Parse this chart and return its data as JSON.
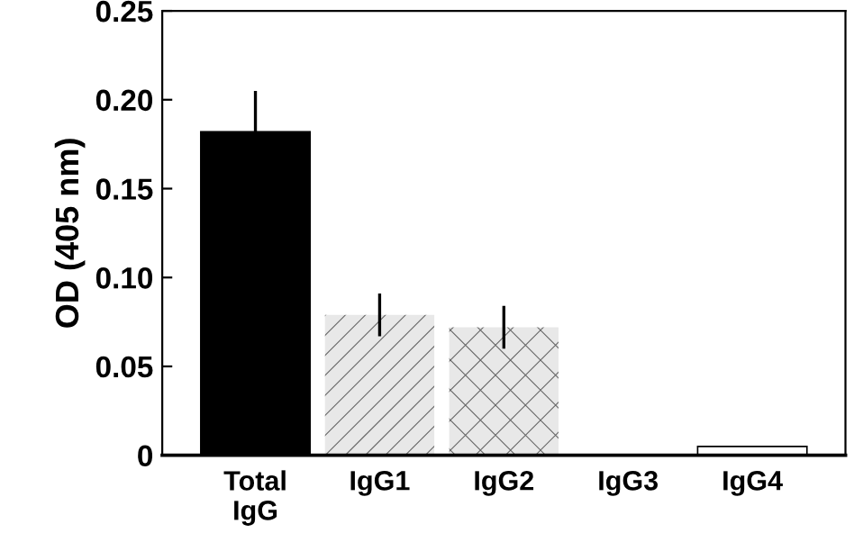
{
  "chart_data": {
    "type": "bar",
    "ylabel": "OD (405 nm)",
    "categories": [
      "Total\nIgG",
      "IgG1",
      "IgG2",
      "IgG3",
      "IgG4"
    ],
    "values": [
      0.182,
      0.079,
      0.072,
      0,
      0.005
    ],
    "errors": [
      0.023,
      0.012,
      0.012,
      null,
      null
    ],
    "colors": [
      "#000000",
      "#e8e8e8",
      "#e8e8e8",
      "#ffffff",
      "#ffffff"
    ],
    "ylim": [
      0,
      0.25
    ],
    "yticks": [
      0,
      {
        "value": 0.05,
        "label": "0.05"
      },
      {
        "value": 0.1,
        "label": "0.10"
      },
      {
        "value": 0.15,
        "label": "0.15"
      },
      {
        "value": 0.2,
        "label": "0.20"
      },
      {
        "value": 0.25,
        "label": "0.25"
      }
    ],
    "grid": false
  }
}
